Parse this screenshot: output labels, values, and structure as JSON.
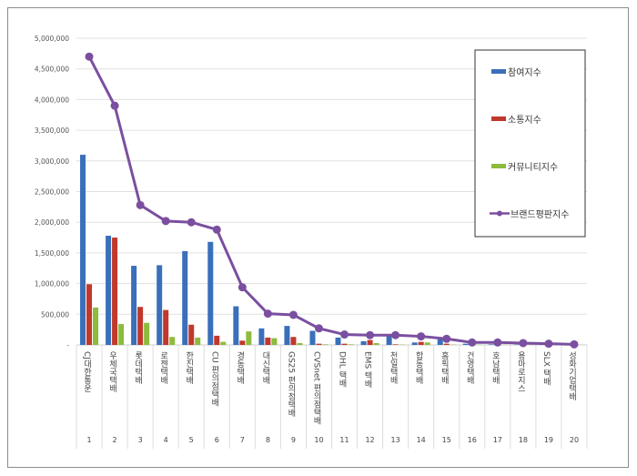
{
  "chart_data": {
    "type": "bar",
    "categories": [
      "CJ대한통운",
      "우체국택배",
      "롯데택배",
      "로젠택배",
      "한진택배",
      "CU 편의점택배",
      "경동택배",
      "대신택배",
      "GS25 편의점택배",
      "CVSnet 편의점택배",
      "DHL 택배",
      "EMS 택배",
      "천일택배",
      "합동택배",
      "홈픽택배",
      "건영택배",
      "호남택배",
      "용마로지스",
      "SLX 택배",
      "성화기업택배"
    ],
    "ranks": [
      "1",
      "2",
      "3",
      "4",
      "5",
      "6",
      "7",
      "8",
      "9",
      "10",
      "11",
      "12",
      "13",
      "14",
      "15",
      "16",
      "17",
      "18",
      "19",
      "20"
    ],
    "ylim": [
      0,
      5000000
    ],
    "yticks": [
      0,
      500000,
      1000000,
      1500000,
      2000000,
      2500000,
      3000000,
      3500000,
      4000000,
      4500000,
      5000000
    ],
    "ytick_labels": [
      "-",
      "500,000",
      "1,000,000",
      "1,500,000",
      "2,000,000",
      "2,500,000",
      "3,000,000",
      "3,500,000",
      "4,000,000",
      "4,500,000",
      "5,000,000"
    ],
    "grid": true,
    "legend": "right",
    "series": [
      {
        "name": "참여지수",
        "kind": "bar",
        "color": "#3a6fba",
        "values": [
          3100000,
          1780000,
          1290000,
          1300000,
          1530000,
          1680000,
          630000,
          270000,
          310000,
          230000,
          120000,
          60000,
          150000,
          40000,
          90000,
          20000,
          10000,
          5000,
          5000,
          3000
        ]
      },
      {
        "name": "소통지수",
        "kind": "bar",
        "color": "#c0392b",
        "values": [
          990000,
          1750000,
          620000,
          570000,
          330000,
          150000,
          70000,
          120000,
          130000,
          20000,
          20000,
          80000,
          10000,
          50000,
          20000,
          5000,
          5000,
          3000,
          3000,
          2000
        ]
      },
      {
        "name": "커뮤니티지수",
        "kind": "bar",
        "color": "#8dbb3c",
        "values": [
          610000,
          340000,
          360000,
          130000,
          120000,
          50000,
          220000,
          110000,
          30000,
          10000,
          10000,
          30000,
          5000,
          40000,
          5000,
          3000,
          3000,
          2000,
          2000,
          1000
        ]
      },
      {
        "name": "브랜드평판지수",
        "kind": "line",
        "color": "#7b4fa0",
        "values": [
          4700000,
          3900000,
          2280000,
          2020000,
          2000000,
          1880000,
          940000,
          510000,
          490000,
          270000,
          170000,
          160000,
          160000,
          140000,
          100000,
          40000,
          40000,
          30000,
          20000,
          10000
        ]
      }
    ]
  }
}
